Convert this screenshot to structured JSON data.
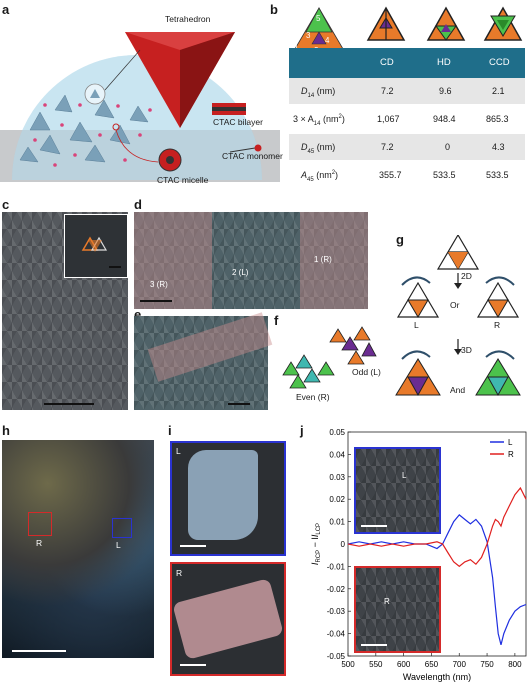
{
  "panels": {
    "a": "a",
    "b": "b",
    "c": "c",
    "d": "d",
    "e": "e",
    "f": "f",
    "g": "g",
    "h": "h",
    "i": "i",
    "j": "j"
  },
  "panel_a": {
    "tetrahedron": "Tetrahedron",
    "ctac_bilayer": "CTAC bilayer",
    "ctac_micelle": "CTAC micelle",
    "ctac_monomer": "CTAC monomer"
  },
  "panel_b": {
    "key_numbers": [
      "5",
      "3",
      "1",
      "4",
      "2"
    ],
    "columns": [
      "CD",
      "HD",
      "CCD"
    ],
    "rows": [
      {
        "label_main": "D",
        "label_sub": "14",
        "label_tail": " (nm)",
        "values": [
          "7.2",
          "9.6",
          "2.1"
        ]
      },
      {
        "label_main": "3 × A",
        "label_sub": "14",
        "label_tail": " (nm",
        "label_sup": "2",
        "label_end": ")",
        "values": [
          "1,067",
          "948.4",
          "865.3"
        ]
      },
      {
        "label_main": "D",
        "label_sub": "45",
        "label_tail": " (nm)",
        "values": [
          "7.2",
          "0",
          "4.3"
        ]
      },
      {
        "label_main": "A",
        "label_sub": "45",
        "label_tail": " (nm",
        "label_sup": "2",
        "label_end": ")",
        "values": [
          "355.7",
          "533.5",
          "533.5"
        ]
      }
    ]
  },
  "panel_d": {
    "labels": [
      "3 (R)",
      "2 (L)",
      "1 (R)"
    ]
  },
  "panel_f": {
    "even": "Even (R)",
    "odd": "Odd (L)"
  },
  "panel_g": {
    "step_2d": "2D",
    "step_3d": "3D",
    "or": "Or",
    "and": "And",
    "L": "L",
    "R": "R"
  },
  "panel_h": {
    "R": "R",
    "L": "L"
  },
  "panel_i": {
    "L": "L",
    "R": "R"
  },
  "panel_j": {
    "inset_L": "L",
    "inset_R": "R"
  },
  "chart_data": {
    "type": "line",
    "xlabel": "Wavelength (nm)",
    "ylabel_main": "I",
    "ylabel_sub1": "RCP",
    "ylabel_mid": " − I",
    "ylabel_sub2": "LCP",
    "xlim": [
      500,
      820
    ],
    "ylim": [
      -0.05,
      0.05
    ],
    "xticks": [
      "500",
      "550",
      "600",
      "650",
      "700",
      "750",
      "800"
    ],
    "yticks": [
      "0.05",
      "0.04",
      "0.03",
      "0.02",
      "0.01",
      "0",
      "-0.01",
      "-0.02",
      "-0.03",
      "-0.04",
      "-0.05"
    ],
    "series": [
      {
        "name": "L",
        "color": "#1f2fe0",
        "x": [
          500,
          520,
          540,
          560,
          580,
          600,
          620,
          640,
          660,
          670,
          680,
          690,
          700,
          710,
          720,
          730,
          740,
          750,
          760,
          765,
          770,
          775,
          780,
          790,
          800,
          810,
          820
        ],
        "y": [
          0.0,
          0.001,
          0.0,
          0.001,
          0.0,
          0.001,
          0.0,
          0.0,
          -0.002,
          0.0,
          0.005,
          0.01,
          0.013,
          0.011,
          0.009,
          0.011,
          0.008,
          0.001,
          -0.015,
          -0.028,
          -0.04,
          -0.045,
          -0.04,
          -0.034,
          -0.03,
          -0.028,
          -0.027
        ]
      },
      {
        "name": "R",
        "color": "#e0201f",
        "x": [
          500,
          520,
          540,
          560,
          580,
          600,
          620,
          640,
          660,
          670,
          680,
          690,
          700,
          710,
          720,
          730,
          740,
          750,
          760,
          765,
          770,
          775,
          780,
          790,
          800,
          810,
          820
        ],
        "y": [
          0.0,
          -0.001,
          0.0,
          -0.001,
          0.0,
          -0.001,
          0.0,
          0.0,
          0.001,
          0.0,
          -0.004,
          -0.008,
          -0.01,
          -0.008,
          -0.007,
          -0.009,
          -0.006,
          0.0,
          0.008,
          0.011,
          0.01,
          0.008,
          0.012,
          0.017,
          0.022,
          0.025,
          0.02
        ]
      }
    ],
    "legend_position": "top-right"
  },
  "colors": {
    "orange": "#e87a2a",
    "purple": "#6a2c91",
    "green": "#4cc24c",
    "teal": "#3fb8b0",
    "blue_box": "#2a33d1",
    "red_box": "#d42a2a",
    "table_header": "#1f6e8a"
  }
}
